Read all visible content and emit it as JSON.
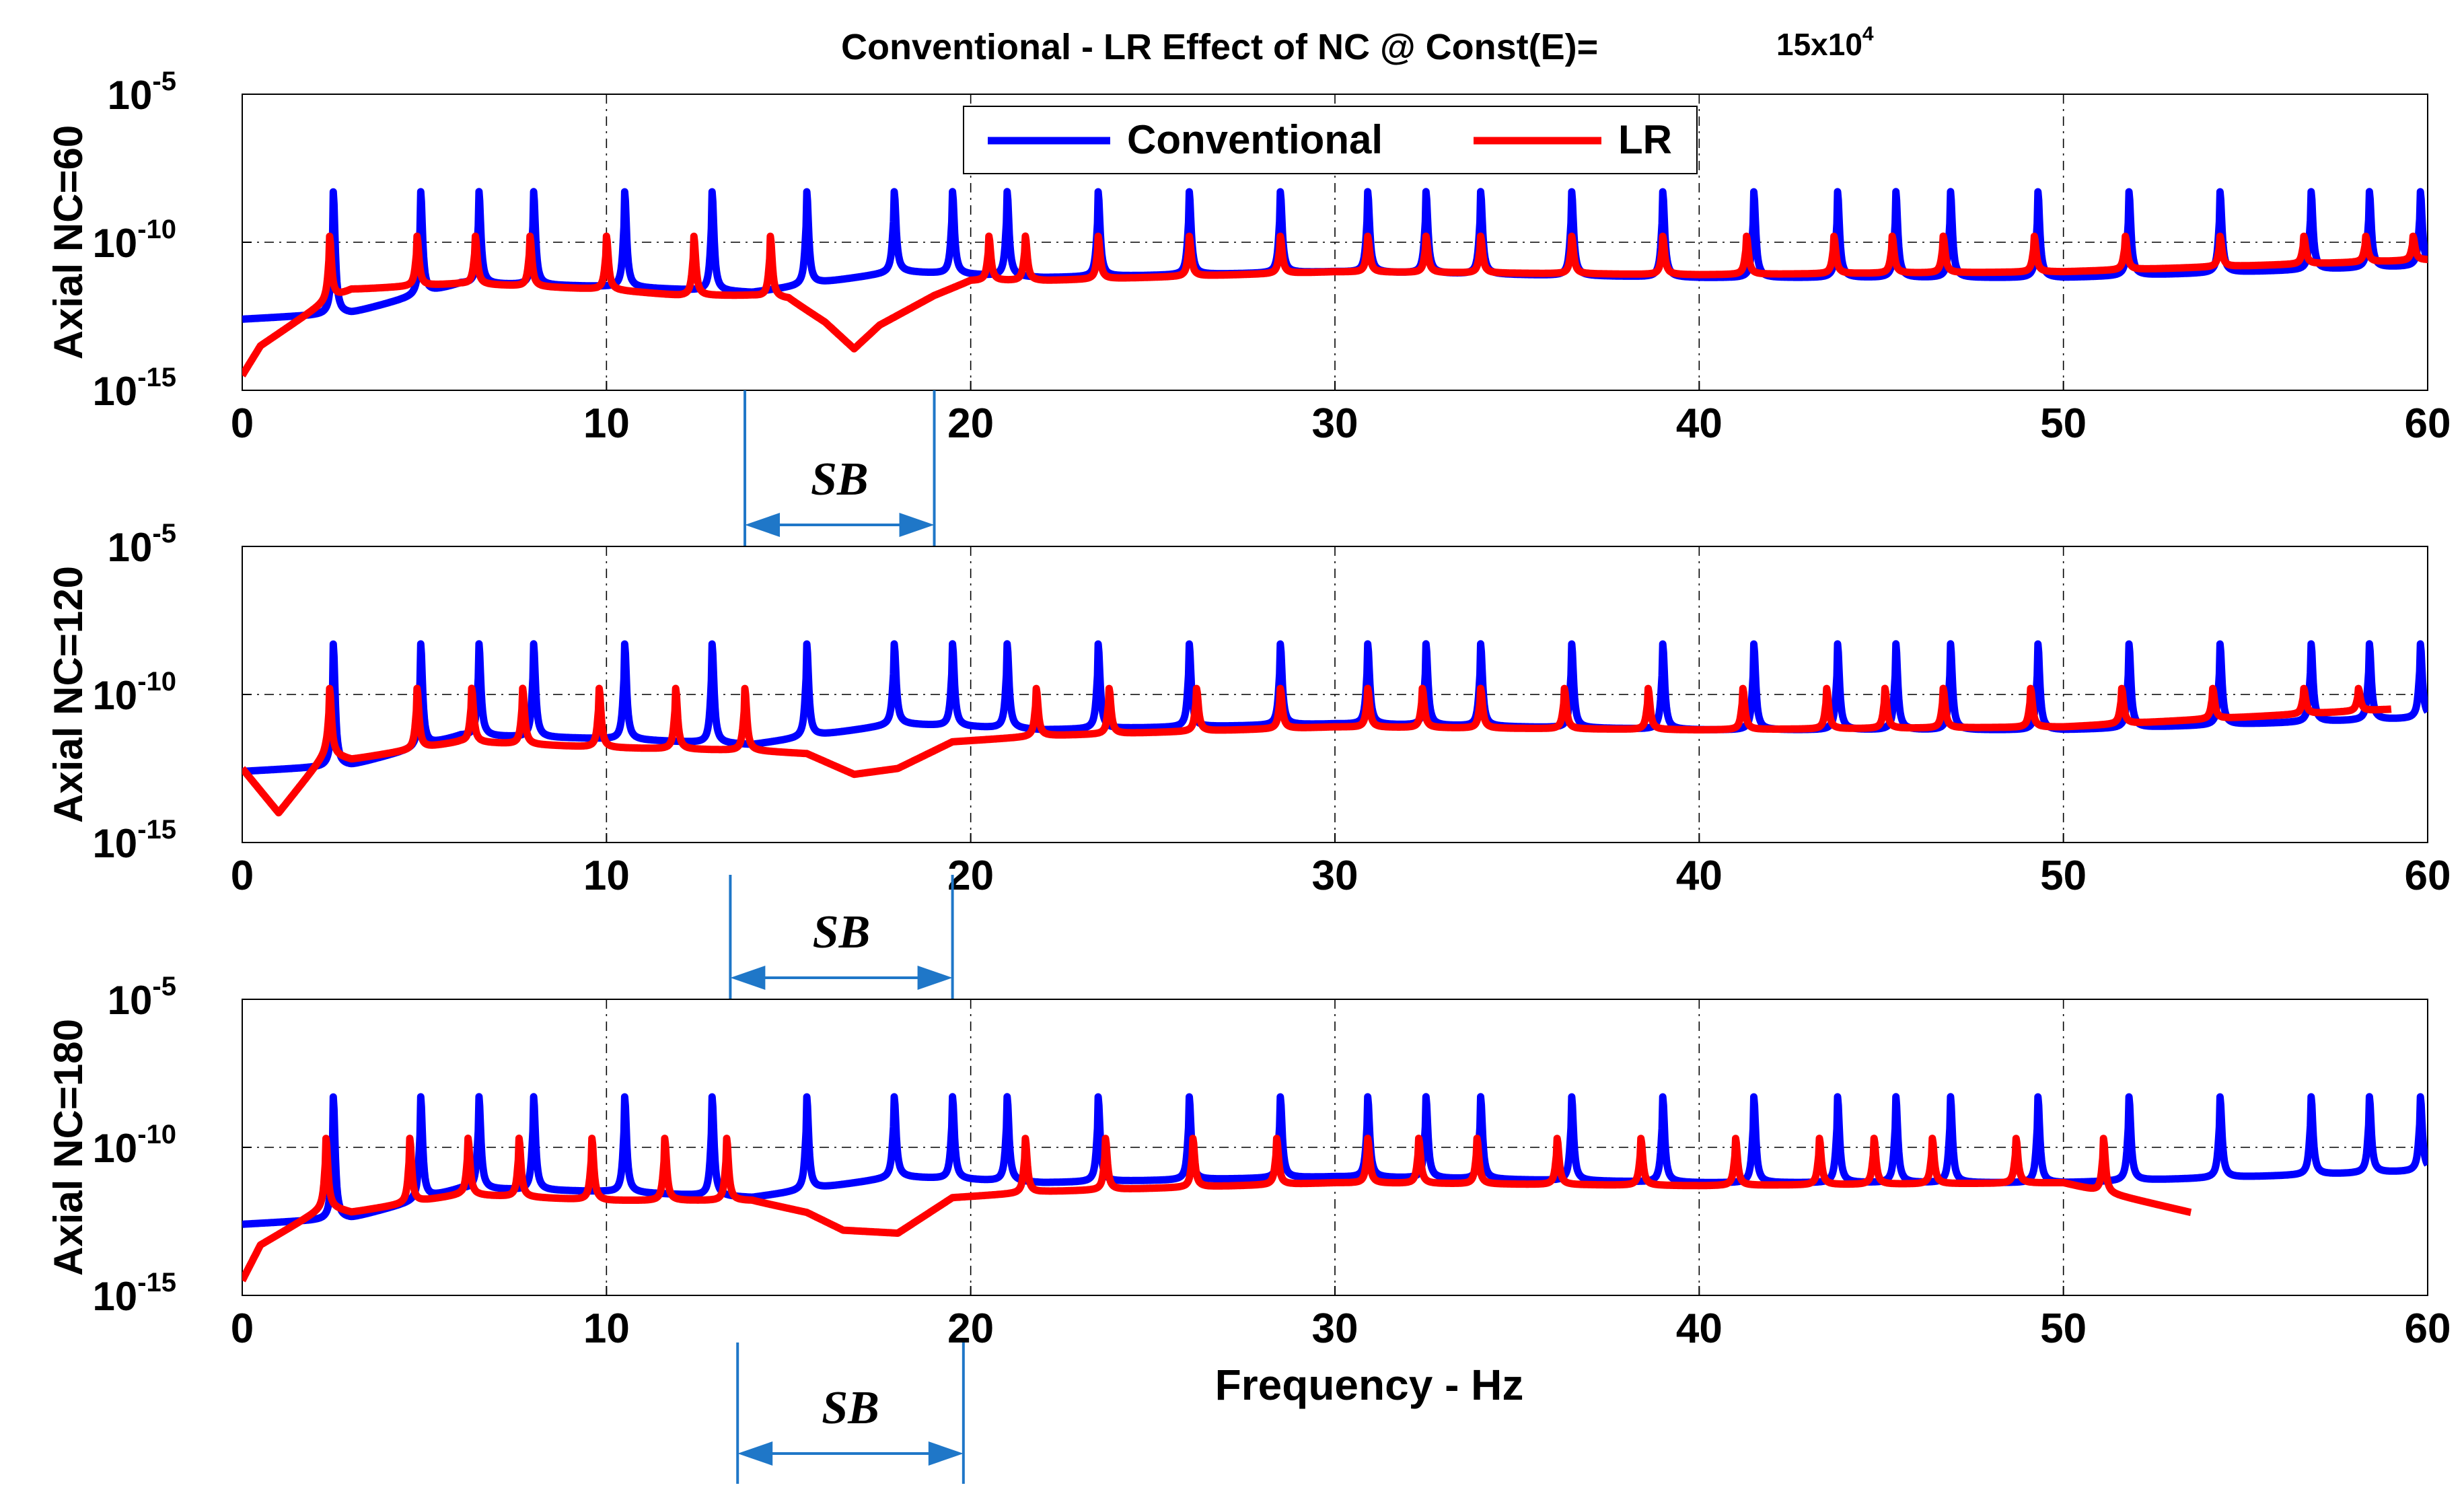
{
  "title": "Conventional - LR Effect of NC @ Const(E)=",
  "title_value_base": "15x10",
  "title_value_exp": "4",
  "xlabel": "Frequency - Hz",
  "colors": {
    "conventional": "#0000ff",
    "lr": "#ff0000",
    "sb": "#1f77c8",
    "grid": "#000000"
  },
  "legend": {
    "placement": "top-center",
    "items": [
      "Conventional",
      "LR"
    ]
  },
  "sb_label": "SB",
  "y_tick_labels": [
    {
      "base": "10",
      "exp": "-5"
    },
    {
      "base": "10",
      "exp": "-10"
    },
    {
      "base": "10",
      "exp": "-15"
    }
  ],
  "chart_data": [
    {
      "type": "line",
      "ylabel": "Axial NC=60",
      "xlim": [
        0,
        60
      ],
      "ylim_log10": [
        -15,
        -5
      ],
      "xticks": [
        0,
        10,
        20,
        30,
        40,
        50,
        60
      ],
      "yticks_log10": [
        -5,
        -10,
        -15
      ],
      "grid": true,
      "stop_band_hz": [
        13.8,
        19
      ],
      "series": [
        {
          "name": "Conventional",
          "baseline_log10": [
            [
              0,
              -12.6
            ],
            [
              3,
              -12.4
            ],
            [
              6,
              -11.4
            ],
            [
              10,
              -11.5
            ],
            [
              14,
              -11.7
            ],
            [
              18,
              -11.0
            ],
            [
              22,
              -11.2
            ],
            [
              30,
              -11.0
            ],
            [
              40,
              -11.2
            ],
            [
              50,
              -11.2
            ],
            [
              60,
              -10.8
            ]
          ],
          "peaks_hz": [
            2.5,
            4.9,
            6.5,
            8.0,
            10.5,
            12.9,
            15.5,
            17.9,
            19.5,
            21.0,
            23.5,
            26.0,
            28.5,
            30.9,
            32.5,
            34.0,
            36.5,
            39.0,
            41.5,
            43.8,
            45.4,
            46.9,
            49.3,
            51.8,
            54.3,
            56.8,
            58.4,
            59.8
          ],
          "peak_log10": -8.3
        },
        {
          "name": "LR",
          "baseline_log10": [
            [
              0,
              -14.5
            ],
            [
              0.5,
              -13.5
            ],
            [
              2.3,
              -12.0
            ],
            [
              3,
              -11.6
            ],
            [
              6,
              -11.4
            ],
            [
              10,
              -11.6
            ],
            [
              12,
              -11.8
            ],
            [
              14,
              -11.8
            ],
            [
              15,
              -11.9
            ],
            [
              16,
              -12.7
            ],
            [
              16.8,
              -13.6
            ],
            [
              17.5,
              -12.8
            ],
            [
              19,
              -11.8
            ],
            [
              20,
              -11.3
            ],
            [
              22,
              -11.3
            ],
            [
              30,
              -11.0
            ],
            [
              40,
              -11.1
            ],
            [
              50,
              -11.0
            ],
            [
              60,
              -10.6
            ]
          ],
          "peaks_hz": [
            2.4,
            4.8,
            6.4,
            7.9,
            10.0,
            12.4,
            14.5,
            20.5,
            21.5,
            23.5,
            26.0,
            28.5,
            30.9,
            32.5,
            34.0,
            36.5,
            39.0,
            41.3,
            43.7,
            45.3,
            46.7,
            49.2,
            51.7,
            54.3,
            56.6,
            58.3,
            59.6
          ],
          "peak_log10": -9.8
        }
      ]
    },
    {
      "type": "line",
      "ylabel": "Axial NC=120",
      "xlim": [
        0,
        60
      ],
      "ylim_log10": [
        -15,
        -5
      ],
      "xticks": [
        0,
        10,
        20,
        30,
        40,
        50,
        60
      ],
      "yticks_log10": [
        -5,
        -10,
        -15
      ],
      "grid": true,
      "stop_band_hz": [
        13.4,
        19.5
      ],
      "series": [
        {
          "name": "Conventional",
          "baseline_log10": [
            [
              0,
              -12.6
            ],
            [
              3,
              -12.4
            ],
            [
              6,
              -11.4
            ],
            [
              10,
              -11.5
            ],
            [
              14,
              -11.7
            ],
            [
              18,
              -11.0
            ],
            [
              22,
              -11.2
            ],
            [
              30,
              -11.0
            ],
            [
              40,
              -11.2
            ],
            [
              50,
              -11.2
            ],
            [
              60,
              -10.8
            ]
          ],
          "peaks_hz": [
            2.5,
            4.9,
            6.5,
            8.0,
            10.5,
            12.9,
            15.5,
            17.9,
            19.5,
            21.0,
            23.5,
            26.0,
            28.5,
            30.9,
            32.5,
            34.0,
            36.5,
            39.0,
            41.5,
            43.8,
            45.4,
            46.9,
            49.3,
            51.8,
            54.3,
            56.8,
            58.4,
            59.8
          ],
          "peak_log10": -8.3
        },
        {
          "name": "LR",
          "baseline_log10": [
            [
              0,
              -12.5
            ],
            [
              1,
              -14.0
            ],
            [
              2.3,
              -12.0
            ],
            [
              3,
              -12.2
            ],
            [
              6,
              -11.6
            ],
            [
              10,
              -11.8
            ],
            [
              14,
              -11.9
            ],
            [
              15.5,
              -12.0
            ],
            [
              16.8,
              -12.7
            ],
            [
              18,
              -12.5
            ],
            [
              19.5,
              -11.6
            ],
            [
              22,
              -11.4
            ],
            [
              30,
              -11.1
            ],
            [
              40,
              -11.2
            ],
            [
              50,
              -11.1
            ],
            [
              59,
              -10.5
            ]
          ],
          "peaks_hz": [
            2.4,
            4.8,
            6.3,
            7.7,
            9.8,
            11.9,
            13.8,
            21.8,
            23.8,
            26.2,
            28.5,
            30.9,
            32.4,
            34.0,
            36.3,
            38.6,
            41.2,
            43.5,
            45.1,
            46.7,
            49.1,
            51.6,
            54.1,
            56.6,
            58.1
          ],
          "peak_log10": -9.8
        }
      ]
    },
    {
      "type": "line",
      "ylabel": "Axial NC=180",
      "xlim": [
        0,
        60
      ],
      "ylim_log10": [
        -15,
        -5
      ],
      "xticks": [
        0,
        10,
        20,
        30,
        40,
        50,
        60
      ],
      "yticks_log10": [
        -5,
        -10,
        -15
      ],
      "grid": true,
      "stop_band_hz": [
        13.6,
        19.8
      ],
      "series": [
        {
          "name": "Conventional",
          "baseline_log10": [
            [
              0,
              -12.6
            ],
            [
              3,
              -12.4
            ],
            [
              6,
              -11.4
            ],
            [
              10,
              -11.5
            ],
            [
              14,
              -11.7
            ],
            [
              18,
              -11.0
            ],
            [
              22,
              -11.2
            ],
            [
              30,
              -11.0
            ],
            [
              40,
              -11.2
            ],
            [
              50,
              -11.2
            ],
            [
              60,
              -10.8
            ]
          ],
          "peaks_hz": [
            2.5,
            4.9,
            6.5,
            8.0,
            10.5,
            12.9,
            15.5,
            17.9,
            19.5,
            21.0,
            23.5,
            26.0,
            28.5,
            30.9,
            32.5,
            34.0,
            36.5,
            39.0,
            41.5,
            43.8,
            45.4,
            46.9,
            49.3,
            51.8,
            54.3,
            56.8,
            58.4,
            59.8
          ],
          "peak_log10": -8.3
        },
        {
          "name": "LR",
          "baseline_log10": [
            [
              0,
              -14.5
            ],
            [
              0.5,
              -13.3
            ],
            [
              2.3,
              -12.0
            ],
            [
              3,
              -12.2
            ],
            [
              6,
              -11.6
            ],
            [
              10,
              -11.8
            ],
            [
              14,
              -11.8
            ],
            [
              15.5,
              -12.2
            ],
            [
              16.5,
              -12.8
            ],
            [
              18,
              -12.9
            ],
            [
              19.5,
              -11.7
            ],
            [
              22,
              -11.5
            ],
            [
              30,
              -11.2
            ],
            [
              40,
              -11.3
            ],
            [
              50,
              -11.2
            ],
            [
              53.5,
              -12.2
            ]
          ],
          "peaks_hz": [
            2.3,
            4.6,
            6.2,
            7.6,
            9.6,
            11.6,
            13.3,
            21.5,
            23.7,
            26.1,
            28.4,
            30.9,
            32.3,
            33.9,
            36.1,
            38.4,
            41.0,
            43.3,
            44.8,
            46.4,
            48.7,
            51.1
          ],
          "peak_log10": -9.7
        }
      ]
    }
  ]
}
